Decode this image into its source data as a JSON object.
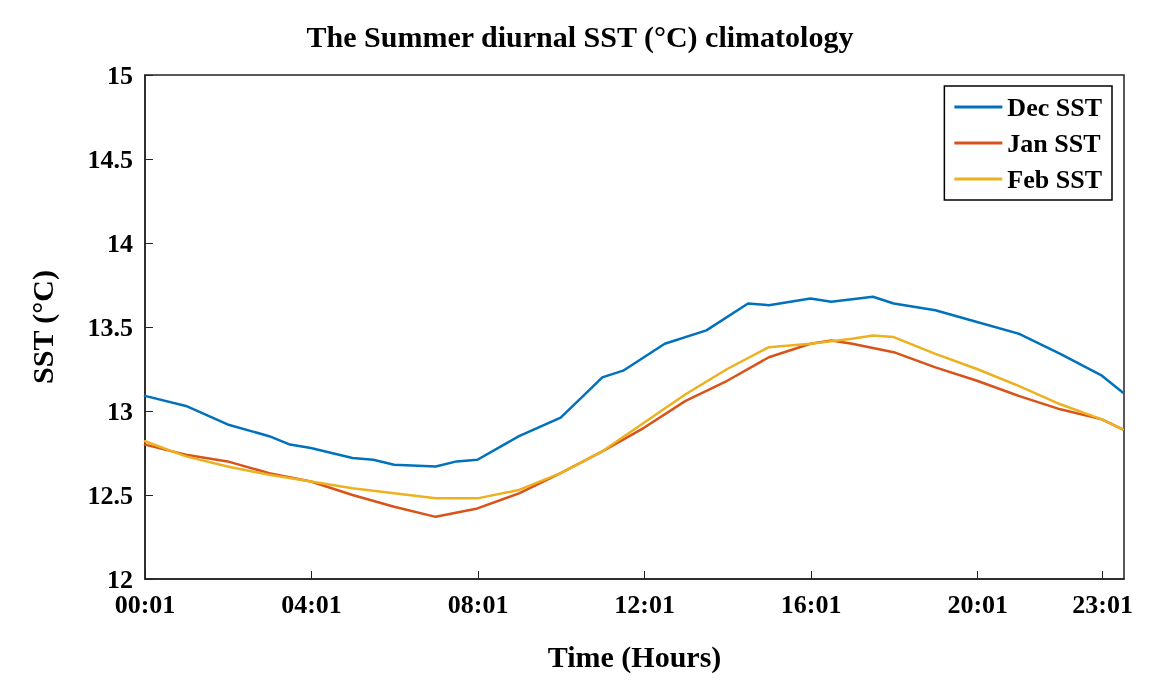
{
  "chart_data": {
    "type": "line",
    "title": "The Summer diurnal SST (°C) climatology",
    "xlabel": "Time (Hours)",
    "ylabel": "SST (°C)",
    "xlim": [
      0.0167,
      23.53
    ],
    "xticks": [
      {
        "value": 0.0167,
        "label": "00:01"
      },
      {
        "value": 4.0167,
        "label": "04:01"
      },
      {
        "value": 8.0167,
        "label": "08:01"
      },
      {
        "value": 12.0167,
        "label": "12:01"
      },
      {
        "value": 16.0167,
        "label": "16:01"
      },
      {
        "value": 20.0167,
        "label": "20:01"
      },
      {
        "value": 23.0167,
        "label": "23:01"
      }
    ],
    "ylim": [
      12,
      15
    ],
    "yticks": [
      12,
      12.5,
      13,
      13.5,
      14,
      14.5,
      15
    ],
    "grid": false,
    "legend": "top right",
    "marker": "none",
    "line_style": "solid",
    "series": [
      {
        "name": "Dec SST",
        "color": "#0072bd",
        "x": [
          0.0167,
          1,
          2,
          3,
          3.5,
          4,
          5,
          5.5,
          6,
          7,
          7.5,
          8,
          9,
          10,
          10.5,
          11,
          11.5,
          12,
          12.5,
          13.5,
          14.5,
          15,
          16,
          16.5,
          17.5,
          18,
          19,
          20,
          21,
          22,
          23,
          23.5
        ],
        "values": [
          13.09,
          13.03,
          12.92,
          12.85,
          12.8,
          12.78,
          12.72,
          12.71,
          12.68,
          12.67,
          12.7,
          12.71,
          12.85,
          12.96,
          13.08,
          13.2,
          13.24,
          13.32,
          13.4,
          13.48,
          13.64,
          13.63,
          13.67,
          13.65,
          13.68,
          13.64,
          13.6,
          13.53,
          13.46,
          13.34,
          13.21,
          13.11
        ]
      },
      {
        "name": "Jan SST",
        "color": "#d95319",
        "x": [
          0.0167,
          1,
          2,
          3,
          4,
          5,
          6,
          7,
          8,
          9,
          10,
          11,
          12,
          13,
          14,
          15,
          16,
          16.5,
          17,
          18,
          19,
          20,
          21,
          22,
          23,
          23.5
        ],
        "values": [
          12.8,
          12.74,
          12.7,
          12.63,
          12.58,
          12.5,
          12.43,
          12.37,
          12.42,
          12.51,
          12.63,
          12.76,
          12.9,
          13.06,
          13.18,
          13.32,
          13.4,
          13.42,
          13.4,
          13.35,
          13.26,
          13.18,
          13.09,
          13.01,
          12.95,
          12.89
        ]
      },
      {
        "name": "Feb SST",
        "color": "#edb120",
        "x": [
          0.0167,
          1,
          2,
          3,
          4,
          5,
          6,
          7,
          8,
          9,
          10,
          11,
          12,
          13,
          14,
          15,
          16,
          17,
          17.5,
          18,
          19,
          20,
          21,
          22,
          23,
          23.5
        ],
        "values": [
          12.82,
          12.73,
          12.67,
          12.62,
          12.58,
          12.54,
          12.51,
          12.48,
          12.48,
          12.53,
          12.63,
          12.76,
          12.93,
          13.1,
          13.25,
          13.38,
          13.4,
          13.43,
          13.45,
          13.44,
          13.34,
          13.25,
          13.15,
          13.04,
          12.95,
          12.89
        ]
      }
    ]
  }
}
